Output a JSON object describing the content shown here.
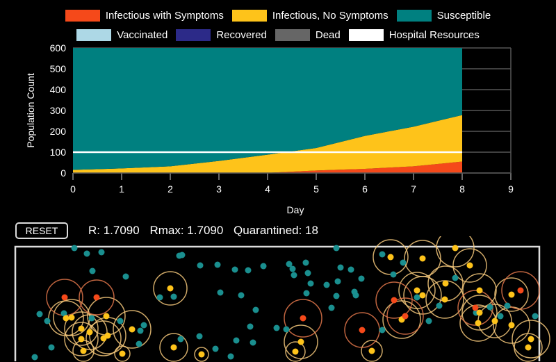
{
  "legend": [
    {
      "label": "Infectious with Symptoms",
      "color": "#f5491a"
    },
    {
      "label": "Infectious, No Symptoms",
      "color": "#fec31a"
    },
    {
      "label": "Susceptible",
      "color": "#008080"
    },
    {
      "label": "Vaccinated",
      "color": "#add8e6"
    },
    {
      "label": "Recovered",
      "color": "#2c2a88"
    },
    {
      "label": "Dead",
      "color": "#666666"
    },
    {
      "label": "Hospital Resources",
      "color": "#ffffff"
    }
  ],
  "chart_data": {
    "type": "area",
    "stacked": true,
    "xlabel": "Day",
    "ylabel": "Population Count",
    "xlim": [
      0,
      9
    ],
    "ylim": [
      0,
      600
    ],
    "xticks": [
      "0",
      "1",
      "2",
      "3",
      "4",
      "5",
      "6",
      "7",
      "8",
      "9"
    ],
    "yticks": [
      "0",
      "100",
      "200",
      "300",
      "400",
      "500",
      "600"
    ],
    "grid": "horizontal",
    "x": [
      0,
      1,
      2,
      3,
      4,
      5,
      6,
      7,
      8
    ],
    "series": [
      {
        "name": "Infectious with Symptoms",
        "color": "#f5491a",
        "values": [
          0,
          0,
          0,
          0,
          1,
          12,
          20,
          32,
          55
        ]
      },
      {
        "name": "Infectious, No Symptoms",
        "color": "#fec31a",
        "values": [
          15,
          22,
          32,
          58,
          87,
          108,
          158,
          190,
          223
        ]
      },
      {
        "name": "Susceptible",
        "color": "#008080",
        "values": [
          585,
          578,
          568,
          542,
          512,
          480,
          422,
          378,
          322
        ]
      }
    ],
    "hospital_resources": 100
  },
  "controls": {
    "reset_label": "RESET"
  },
  "stats": {
    "r": "R: 1.7090",
    "rmax": "Rmax: 1.7090",
    "quarantined": "Quarantined: 18"
  }
}
